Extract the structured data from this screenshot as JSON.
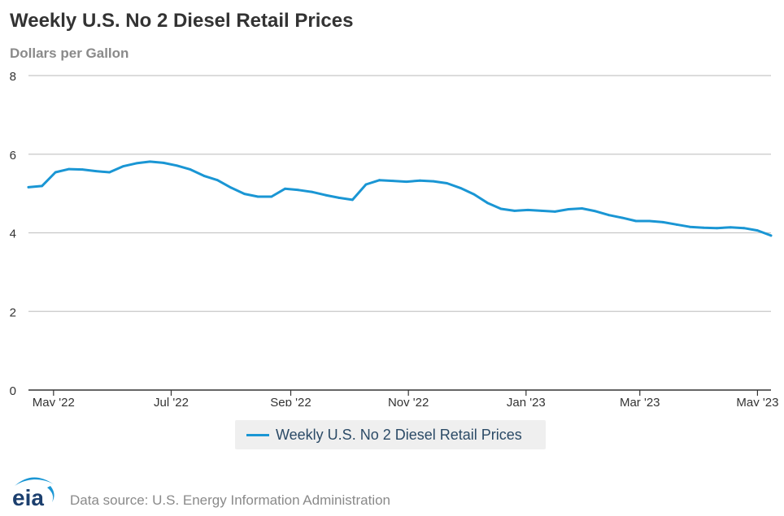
{
  "chart_data": {
    "type": "line",
    "title": "Weekly U.S. No 2 Diesel Retail Prices",
    "subtitle": "Dollars per Gallon",
    "xlabel": "",
    "ylabel": "",
    "ylim": [
      0,
      8
    ],
    "yticks": [
      0,
      2,
      4,
      6,
      8
    ],
    "xlim": [
      "2022-04-18",
      "2023-05-08"
    ],
    "xticks": [
      {
        "date": "2022-05-01",
        "label": "May '22"
      },
      {
        "date": "2022-07-01",
        "label": "Jul '22"
      },
      {
        "date": "2022-09-01",
        "label": "Sep '22"
      },
      {
        "date": "2022-11-01",
        "label": "Nov '22"
      },
      {
        "date": "2023-01-01",
        "label": "Jan '23"
      },
      {
        "date": "2023-03-01",
        "label": "Mar '23"
      },
      {
        "date": "2023-05-01",
        "label": "May '23"
      }
    ],
    "grid": true,
    "legend": "bottom",
    "series": [
      {
        "name": "Weekly U.S. No 2 Diesel Retail Prices",
        "color": "#1a96d4",
        "x": [
          "2022-04-18",
          "2022-04-25",
          "2022-05-02",
          "2022-05-09",
          "2022-05-16",
          "2022-05-23",
          "2022-05-30",
          "2022-06-06",
          "2022-06-13",
          "2022-06-20",
          "2022-06-27",
          "2022-07-04",
          "2022-07-11",
          "2022-07-18",
          "2022-07-25",
          "2022-08-01",
          "2022-08-08",
          "2022-08-15",
          "2022-08-22",
          "2022-08-29",
          "2022-09-05",
          "2022-09-12",
          "2022-09-19",
          "2022-09-26",
          "2022-10-03",
          "2022-10-10",
          "2022-10-17",
          "2022-10-24",
          "2022-10-31",
          "2022-11-07",
          "2022-11-14",
          "2022-11-21",
          "2022-11-28",
          "2022-12-05",
          "2022-12-12",
          "2022-12-19",
          "2022-12-26",
          "2023-01-02",
          "2023-01-09",
          "2023-01-16",
          "2023-01-23",
          "2023-01-30",
          "2023-02-06",
          "2023-02-13",
          "2023-02-20",
          "2023-02-27",
          "2023-03-06",
          "2023-03-13",
          "2023-03-20",
          "2023-03-27",
          "2023-04-03",
          "2023-04-10",
          "2023-04-17",
          "2023-04-24",
          "2023-05-01",
          "2023-05-08"
        ],
        "values": [
          5.16,
          5.19,
          5.54,
          5.62,
          5.61,
          5.57,
          5.54,
          5.69,
          5.77,
          5.81,
          5.78,
          5.71,
          5.61,
          5.45,
          5.34,
          5.15,
          4.99,
          4.92,
          4.92,
          5.12,
          5.09,
          5.04,
          4.96,
          4.89,
          4.84,
          5.23,
          5.34,
          5.32,
          5.3,
          5.33,
          5.31,
          5.26,
          5.14,
          4.98,
          4.76,
          4.61,
          4.56,
          4.58,
          4.56,
          4.54,
          4.6,
          4.62,
          4.55,
          4.45,
          4.38,
          4.3,
          4.3,
          4.27,
          4.21,
          4.15,
          4.13,
          4.12,
          4.14,
          4.12,
          4.06,
          3.93
        ]
      }
    ]
  },
  "legend": {
    "label": "Weekly U.S. No 2 Diesel Retail Prices",
    "color": "#1a96d4"
  },
  "logo": {
    "text": "eia",
    "icon": "eia-logo-icon"
  },
  "footer": {
    "source": "Data source: U.S. Energy Information Administration"
  }
}
